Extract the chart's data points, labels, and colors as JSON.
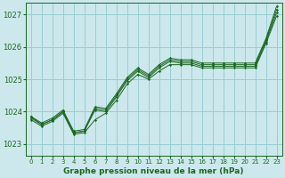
{
  "title": "Graphe pression niveau de la mer (hPa)",
  "bg_color": "#cce8ec",
  "grid_color": "#99cdd4",
  "line_color": "#1a6620",
  "text_color": "#1a6620",
  "xlim": [
    -0.5,
    23.5
  ],
  "ylim": [
    1022.65,
    1027.35
  ],
  "yticks": [
    1023,
    1024,
    1025,
    1026,
    1027
  ],
  "xticks": [
    0,
    1,
    2,
    3,
    4,
    5,
    6,
    7,
    8,
    9,
    10,
    11,
    12,
    13,
    14,
    15,
    16,
    17,
    18,
    19,
    20,
    21,
    22,
    23
  ],
  "series": [
    [
      1023.75,
      1023.55,
      1023.7,
      1023.95,
      1023.3,
      1023.35,
      1023.75,
      1023.95,
      1024.35,
      1024.85,
      1025.15,
      1025.0,
      1025.25,
      1025.45,
      1025.45,
      1025.45,
      1025.35,
      1025.35,
      1025.35,
      1025.35,
      1025.35,
      1025.35,
      1026.1,
      1026.95
    ],
    [
      1023.8,
      1023.6,
      1023.75,
      1024.0,
      1023.35,
      1023.4,
      1024.05,
      1024.0,
      1024.45,
      1024.95,
      1025.25,
      1025.05,
      1025.35,
      1025.55,
      1025.5,
      1025.5,
      1025.4,
      1025.4,
      1025.4,
      1025.4,
      1025.4,
      1025.4,
      1026.15,
      1027.05
    ],
    [
      1023.85,
      1023.6,
      1023.75,
      1024.0,
      1023.35,
      1023.4,
      1024.1,
      1024.05,
      1024.5,
      1025.0,
      1025.3,
      1025.1,
      1025.4,
      1025.6,
      1025.55,
      1025.55,
      1025.45,
      1025.45,
      1025.45,
      1025.45,
      1025.45,
      1025.45,
      1026.2,
      1027.15
    ],
    [
      1023.85,
      1023.65,
      1023.8,
      1024.05,
      1023.4,
      1023.45,
      1024.15,
      1024.1,
      1024.55,
      1025.05,
      1025.35,
      1025.15,
      1025.45,
      1025.65,
      1025.6,
      1025.6,
      1025.5,
      1025.5,
      1025.5,
      1025.5,
      1025.5,
      1025.5,
      1026.25,
      1027.25
    ]
  ],
  "figsize": [
    3.2,
    2.0
  ],
  "dpi": 100
}
